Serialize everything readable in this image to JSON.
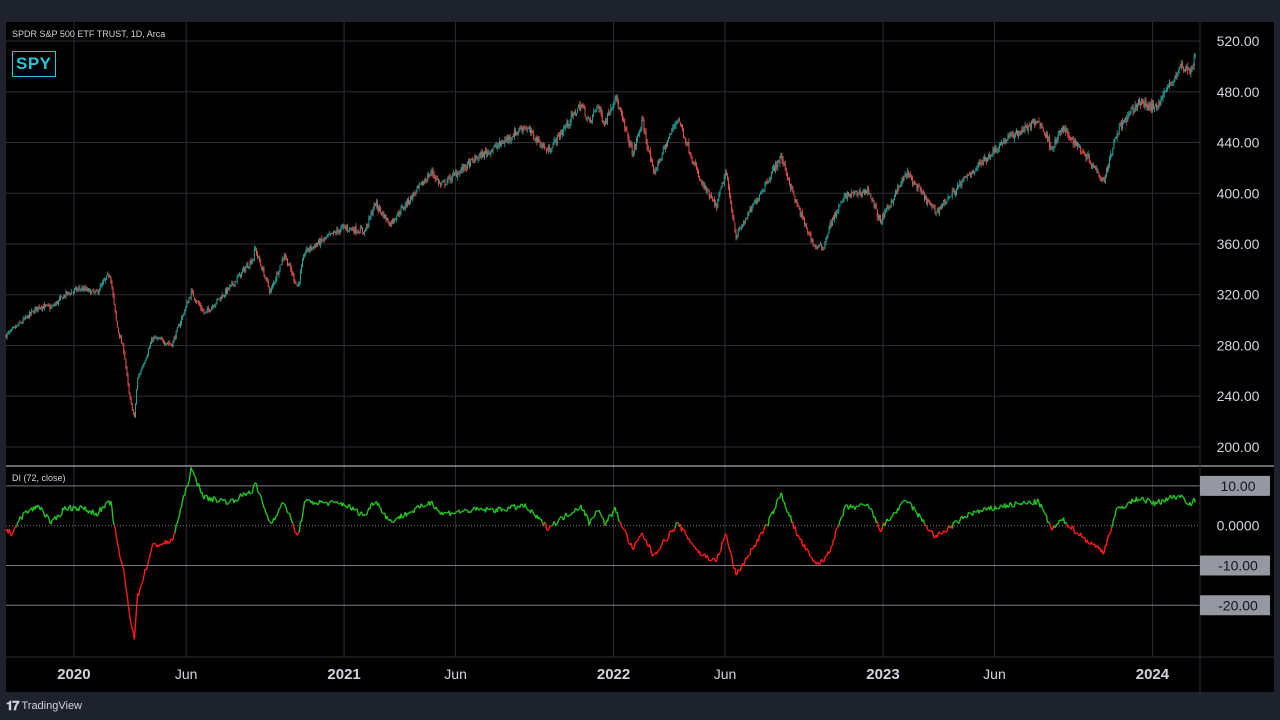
{
  "header": {
    "symbol_line": "SPDR S&P 500 ETF TRUST, 1D, Arca",
    "ticker": "SPY",
    "indicator_label": "DI (72, close)"
  },
  "footer": {
    "brand": "TradingView",
    "logo_icon": "tradingview-logo-icon"
  },
  "colors": {
    "up": "#26a69a",
    "down": "#ef5350",
    "di_positive": "#22c322",
    "di_negative": "#ff1a1a",
    "accent": "#26c6da",
    "badge_fill": "#9598a1"
  },
  "chart_data": [
    {
      "type": "candlestick",
      "title": "SPDR S&P 500 ETF TRUST, 1D, Arca",
      "x_range": [
        "2019-10-01",
        "2024-02-29"
      ],
      "ylim": [
        185,
        535
      ],
      "y_ticks": [
        "200.00",
        "240.00",
        "280.00",
        "320.00",
        "360.00",
        "400.00",
        "440.00",
        "480.00",
        "520.00"
      ],
      "x_ticks": [
        {
          "date": "2020-01-01",
          "label": "2020",
          "bold": true
        },
        {
          "date": "2020-06-01",
          "label": "Jun",
          "bold": false
        },
        {
          "date": "2021-01-01",
          "label": "2021",
          "bold": true
        },
        {
          "date": "2021-06-01",
          "label": "Jun",
          "bold": false
        },
        {
          "date": "2022-01-01",
          "label": "2022",
          "bold": true
        },
        {
          "date": "2022-06-01",
          "label": "Jun",
          "bold": false
        },
        {
          "date": "2023-01-01",
          "label": "2023",
          "bold": true
        },
        {
          "date": "2023-06-01",
          "label": "Jun",
          "bold": false
        },
        {
          "date": "2024-01-01",
          "label": "2024",
          "bold": true
        }
      ],
      "grid": true,
      "close_path": [
        [
          "2019-10-01",
          288
        ],
        [
          "2019-10-10",
          292
        ],
        [
          "2019-10-25",
          300
        ],
        [
          "2019-11-15",
          311
        ],
        [
          "2019-12-02",
          310
        ],
        [
          "2019-12-20",
          320
        ],
        [
          "2020-01-10",
          325
        ],
        [
          "2020-01-31",
          321
        ],
        [
          "2020-02-19",
          337
        ],
        [
          "2020-02-28",
          296
        ],
        [
          "2020-03-09",
          275
        ],
        [
          "2020-03-16",
          240
        ],
        [
          "2020-03-23",
          223
        ],
        [
          "2020-03-27",
          253
        ],
        [
          "2020-04-17",
          286
        ],
        [
          "2020-05-13",
          281
        ],
        [
          "2020-06-08",
          322
        ],
        [
          "2020-06-26",
          305
        ],
        [
          "2020-07-31",
          326
        ],
        [
          "2020-08-31",
          349
        ],
        [
          "2020-09-02",
          357
        ],
        [
          "2020-09-23",
          322
        ],
        [
          "2020-10-12",
          352
        ],
        [
          "2020-10-30",
          326
        ],
        [
          "2020-11-09",
          354
        ],
        [
          "2020-12-31",
          373
        ],
        [
          "2021-01-29",
          370
        ],
        [
          "2021-02-12",
          392
        ],
        [
          "2021-03-04",
          376
        ],
        [
          "2021-04-30",
          417
        ],
        [
          "2021-05-12",
          406
        ],
        [
          "2021-06-30",
          428
        ],
        [
          "2021-07-30",
          438
        ],
        [
          "2021-09-02",
          453
        ],
        [
          "2021-10-04",
          433
        ],
        [
          "2021-11-18",
          470
        ],
        [
          "2021-11-30",
          455
        ],
        [
          "2021-12-10",
          470
        ],
        [
          "2021-12-20",
          455
        ],
        [
          "2022-01-03",
          477
        ],
        [
          "2022-01-27",
          431
        ],
        [
          "2022-02-09",
          457
        ],
        [
          "2022-02-24",
          415
        ],
        [
          "2022-03-29",
          460
        ],
        [
          "2022-04-28",
          410
        ],
        [
          "2022-05-20",
          389
        ],
        [
          "2022-06-02",
          417
        ],
        [
          "2022-06-16",
          366
        ],
        [
          "2022-07-29",
          411
        ],
        [
          "2022-08-16",
          429
        ],
        [
          "2022-09-06",
          391
        ],
        [
          "2022-09-30",
          358
        ],
        [
          "2022-10-12",
          357
        ],
        [
          "2022-10-21",
          375
        ],
        [
          "2022-11-11",
          398
        ],
        [
          "2022-12-13",
          402
        ],
        [
          "2022-12-28",
          377
        ],
        [
          "2023-02-02",
          416
        ],
        [
          "2023-03-13",
          385
        ],
        [
          "2023-04-28",
          415
        ],
        [
          "2023-06-15",
          442
        ],
        [
          "2023-07-31",
          457
        ],
        [
          "2023-08-18",
          436
        ],
        [
          "2023-09-01",
          451
        ],
        [
          "2023-10-06",
          428
        ],
        [
          "2023-10-27",
          410
        ],
        [
          "2023-11-14",
          449
        ],
        [
          "2023-12-14",
          472
        ],
        [
          "2024-01-04",
          467
        ],
        [
          "2024-01-24",
          485
        ],
        [
          "2024-02-09",
          500
        ],
        [
          "2024-02-21",
          497
        ],
        [
          "2024-02-29",
          508
        ]
      ]
    },
    {
      "type": "line",
      "title": "DI (72, close)",
      "ylim": [
        -33,
        15
      ],
      "y_ticks": [
        "10.00",
        "0.0000",
        "-10.00",
        "-20.00"
      ],
      "highlighted_ticks": [
        "10.00",
        "-10.00",
        "-20.00"
      ],
      "bands": [
        10,
        -10,
        -20
      ],
      "zero_line": 0,
      "series": [
        {
          "coloring": "green above 0, red below 0",
          "points": [
            [
              "2019-10-01",
              -1
            ],
            [
              "2019-10-08",
              -2
            ],
            [
              "2019-10-25",
              3
            ],
            [
              "2019-11-15",
              5
            ],
            [
              "2019-12-02",
              0.5
            ],
            [
              "2019-12-20",
              4.5
            ],
            [
              "2020-01-10",
              4.5
            ],
            [
              "2020-01-31",
              3
            ],
            [
              "2020-02-20",
              6
            ],
            [
              "2020-02-28",
              -4
            ],
            [
              "2020-03-09",
              -12
            ],
            [
              "2020-03-16",
              -22
            ],
            [
              "2020-03-23",
              -28
            ],
            [
              "2020-03-27",
              -18
            ],
            [
              "2020-04-17",
              -5
            ],
            [
              "2020-05-13",
              -4
            ],
            [
              "2020-06-08",
              14
            ],
            [
              "2020-06-26",
              7
            ],
            [
              "2020-07-31",
              6
            ],
            [
              "2020-08-31",
              9
            ],
            [
              "2020-09-02",
              11
            ],
            [
              "2020-09-23",
              0.5
            ],
            [
              "2020-10-12",
              6
            ],
            [
              "2020-10-30",
              -3
            ],
            [
              "2020-11-09",
              6
            ],
            [
              "2020-12-31",
              5.5
            ],
            [
              "2021-01-29",
              2.5
            ],
            [
              "2021-02-12",
              6.5
            ],
            [
              "2021-03-04",
              1
            ],
            [
              "2021-04-30",
              6
            ],
            [
              "2021-05-12",
              3
            ],
            [
              "2021-06-30",
              4
            ],
            [
              "2021-07-30",
              4
            ],
            [
              "2021-09-02",
              5
            ],
            [
              "2021-10-04",
              -0.5
            ],
            [
              "2021-11-18",
              5
            ],
            [
              "2021-11-30",
              0.5
            ],
            [
              "2021-12-10",
              4.5
            ],
            [
              "2021-12-20",
              0.5
            ],
            [
              "2022-01-03",
              4
            ],
            [
              "2022-01-27",
              -6
            ],
            [
              "2022-02-09",
              -2
            ],
            [
              "2022-02-24",
              -7.5
            ],
            [
              "2022-03-29",
              0.5
            ],
            [
              "2022-04-28",
              -7
            ],
            [
              "2022-05-20",
              -9
            ],
            [
              "2022-06-02",
              -2
            ],
            [
              "2022-06-16",
              -12.5
            ],
            [
              "2022-07-29",
              0.5
            ],
            [
              "2022-08-16",
              8
            ],
            [
              "2022-09-06",
              -2
            ],
            [
              "2022-09-30",
              -9.5
            ],
            [
              "2022-10-12",
              -9
            ],
            [
              "2022-10-21",
              -6
            ],
            [
              "2022-11-11",
              4.5
            ],
            [
              "2022-12-13",
              5
            ],
            [
              "2022-12-28",
              -1
            ],
            [
              "2023-02-02",
              6.5
            ],
            [
              "2023-03-13",
              -3
            ],
            [
              "2023-04-28",
              3
            ],
            [
              "2023-06-15",
              5
            ],
            [
              "2023-07-31",
              6
            ],
            [
              "2023-08-18",
              -1
            ],
            [
              "2023-09-01",
              1.5
            ],
            [
              "2023-10-06",
              -4
            ],
            [
              "2023-10-27",
              -6.5
            ],
            [
              "2023-11-14",
              4
            ],
            [
              "2023-12-14",
              7
            ],
            [
              "2024-01-04",
              5.5
            ],
            [
              "2024-01-24",
              7
            ],
            [
              "2024-02-09",
              7.5
            ],
            [
              "2024-02-21",
              5.5
            ],
            [
              "2024-02-29",
              6.5
            ]
          ]
        }
      ]
    }
  ]
}
